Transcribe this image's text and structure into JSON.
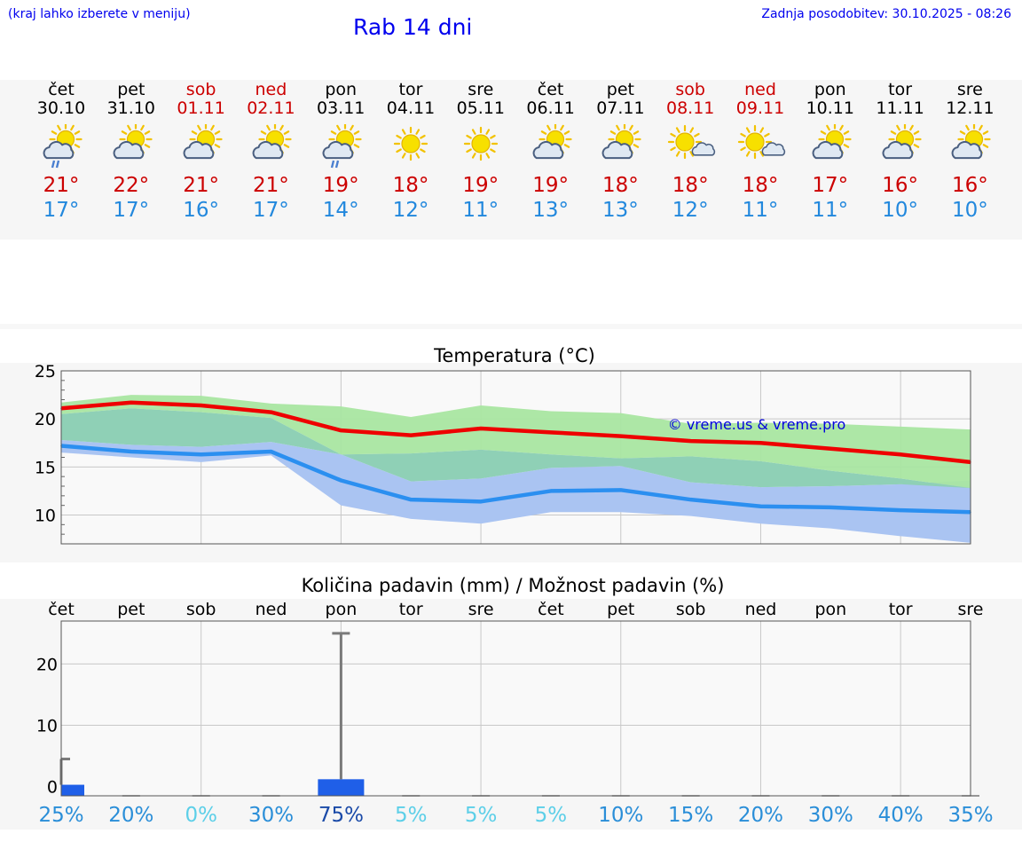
{
  "header": {
    "location_hint": "(kraj lahko izberete v meniju)",
    "title": "Rab 14 dni",
    "updated": "Zadnja posodobitev: 30.10.2025 - 08:26"
  },
  "days": [
    {
      "name": "čet",
      "date": "30.10",
      "weekend": false,
      "icon": "sun-cloud-rain-icon",
      "max": "21°",
      "min": "17°"
    },
    {
      "name": "pet",
      "date": "31.10",
      "weekend": false,
      "icon": "sun-cloud-icon",
      "max": "22°",
      "min": "17°"
    },
    {
      "name": "sob",
      "date": "01.11",
      "weekend": true,
      "icon": "sun-cloud-icon",
      "max": "21°",
      "min": "16°"
    },
    {
      "name": "ned",
      "date": "02.11",
      "weekend": true,
      "icon": "sun-cloud-icon",
      "max": "21°",
      "min": "17°"
    },
    {
      "name": "pon",
      "date": "03.11",
      "weekend": false,
      "icon": "sun-cloud-rain-icon",
      "max": "19°",
      "min": "14°"
    },
    {
      "name": "tor",
      "date": "04.11",
      "weekend": false,
      "icon": "sun-icon",
      "max": "18°",
      "min": "12°"
    },
    {
      "name": "sre",
      "date": "05.11",
      "weekend": false,
      "icon": "sun-icon",
      "max": "19°",
      "min": "11°"
    },
    {
      "name": "čet",
      "date": "06.11",
      "weekend": false,
      "icon": "sun-cloud-icon",
      "max": "19°",
      "min": "13°"
    },
    {
      "name": "pet",
      "date": "07.11",
      "weekend": false,
      "icon": "sun-cloud-icon",
      "max": "18°",
      "min": "13°"
    },
    {
      "name": "sob",
      "date": "08.11",
      "weekend": true,
      "icon": "sun-small-cloud-icon",
      "max": "18°",
      "min": "12°"
    },
    {
      "name": "ned",
      "date": "09.11",
      "weekend": true,
      "icon": "sun-small-cloud-icon",
      "max": "18°",
      "min": "11°"
    },
    {
      "name": "pon",
      "date": "10.11",
      "weekend": false,
      "icon": "sun-cloud-icon",
      "max": "17°",
      "min": "11°"
    },
    {
      "name": "tor",
      "date": "11.11",
      "weekend": false,
      "icon": "sun-cloud-icon",
      "max": "16°",
      "min": "10°"
    },
    {
      "name": "sre",
      "date": "12.11",
      "weekend": false,
      "icon": "sun-cloud-icon",
      "max": "16°",
      "min": "10°"
    }
  ],
  "colors": {
    "max_line": "#ee0000",
    "min_line": "#2b8ff0",
    "max_band": "#a9e6a1",
    "min_band": "#aac4f2",
    "overlap_band": "#8fd0b6",
    "weekend": "#cc0000",
    "min_text": "#2288dd",
    "bar": "#1f5fe8",
    "error_bar": "#7a7a7a"
  },
  "chart_data": [
    {
      "type": "line",
      "title": "Temperatura (°C)",
      "x": [
        0,
        1,
        2,
        3,
        4,
        5,
        6,
        7,
        8,
        9,
        10,
        11,
        12,
        13
      ],
      "ylim": [
        7,
        25
      ],
      "yticks": [
        25,
        20,
        15,
        10
      ],
      "series": [
        {
          "name": "max",
          "values": [
            21.1,
            21.7,
            21.4,
            20.7,
            18.8,
            18.3,
            19.0,
            18.6,
            18.2,
            17.7,
            17.5,
            16.9,
            16.3,
            15.5
          ],
          "band_low": [
            20.5,
            21.1,
            20.7,
            20.1,
            16.3,
            16.4,
            16.8,
            16.3,
            15.9,
            16.1,
            15.6,
            14.6,
            13.8,
            12.8
          ],
          "band_high": [
            21.7,
            22.5,
            22.4,
            21.6,
            21.3,
            20.2,
            21.4,
            20.8,
            20.6,
            19.5,
            19.6,
            19.5,
            19.2,
            18.9
          ]
        },
        {
          "name": "min",
          "values": [
            17.2,
            16.6,
            16.3,
            16.6,
            13.6,
            11.6,
            11.4,
            12.5,
            12.6,
            11.6,
            10.9,
            10.8,
            10.5,
            10.3
          ],
          "band_low": [
            16.5,
            16.0,
            15.5,
            16.2,
            11.0,
            9.6,
            9.1,
            10.3,
            10.3,
            9.9,
            9.1,
            8.6,
            7.8,
            7.1
          ],
          "band_high": [
            17.8,
            17.3,
            17.1,
            17.6,
            16.3,
            13.5,
            13.8,
            14.9,
            15.1,
            13.4,
            12.9,
            13.0,
            13.2,
            13.6
          ]
        }
      ],
      "watermark": "© vreme.us & vreme.pro"
    },
    {
      "type": "bar",
      "title": "Količina padavin (mm) / Možnost padavin (%)",
      "categories": [
        "čet",
        "pet",
        "sob",
        "ned",
        "pon",
        "tor",
        "sre",
        "čet",
        "pet",
        "sob",
        "ned",
        "pon",
        "tor",
        "sre"
      ],
      "values": [
        0.3,
        0,
        0,
        0,
        1.2,
        0,
        0,
        0,
        0,
        0,
        0,
        0,
        0,
        0
      ],
      "error_high": [
        4.5,
        0,
        0,
        0,
        25,
        0,
        0,
        0,
        0,
        0,
        0,
        0,
        0,
        0
      ],
      "ylim": [
        -1.5,
        27
      ],
      "yticks": [
        20,
        10,
        0
      ],
      "probability": [
        "25%",
        "20%",
        "0%",
        "30%",
        "75%",
        "5%",
        "5%",
        "5%",
        "10%",
        "15%",
        "20%",
        "30%",
        "40%",
        "35%"
      ],
      "probability_values": [
        25,
        20,
        0,
        30,
        75,
        5,
        5,
        5,
        10,
        15,
        20,
        30,
        40,
        35
      ]
    }
  ]
}
